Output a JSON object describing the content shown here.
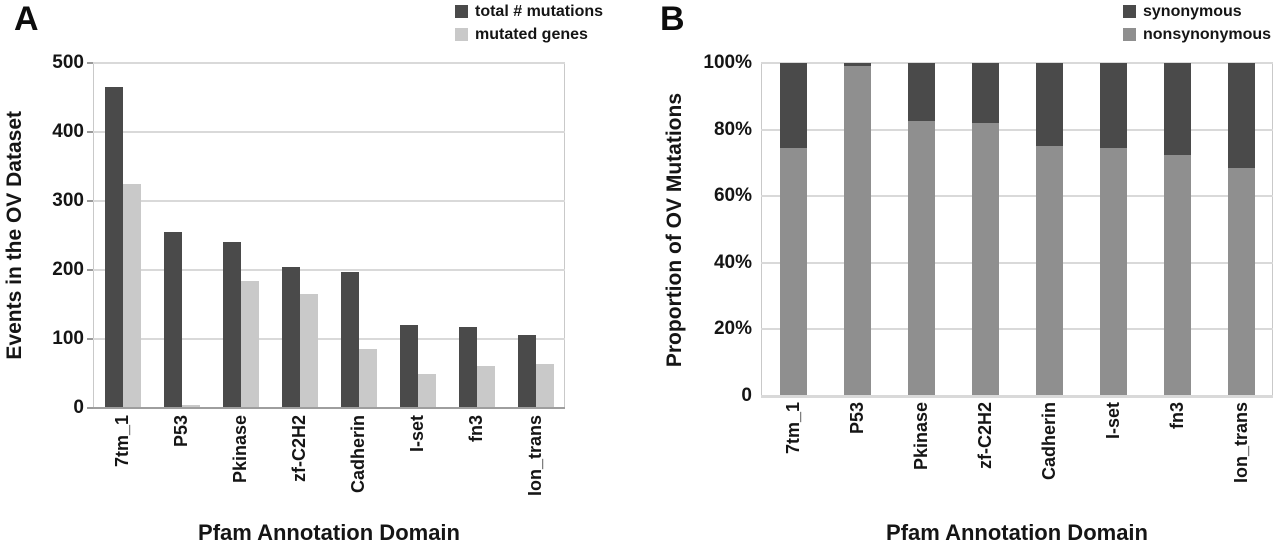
{
  "figure": {
    "panels": [
      {
        "letter": "A"
      },
      {
        "letter": "B"
      }
    ]
  },
  "chart_data": [
    {
      "panel": "A",
      "type": "bar",
      "xlabel": "Pfam Annotation Domain",
      "ylabel": "Events in the OV Dataset",
      "categories": [
        "7tm_1",
        "P53",
        "Pkinase",
        "zf-C2H2",
        "Cadherin",
        "I-set",
        "fn3",
        "Ion_trans"
      ],
      "series": [
        {
          "name": "total # mutations",
          "color": "#4a4a4a",
          "values": [
            465,
            255,
            240,
            205,
            197,
            120,
            117,
            106
          ]
        },
        {
          "name": "mutated genes",
          "color": "#c9c9c9",
          "values": [
            325,
            5,
            184,
            165,
            85,
            50,
            61,
            64
          ]
        }
      ],
      "ylim": [
        0,
        500
      ],
      "yticks": [
        "0",
        "100",
        "200",
        "300",
        "400",
        "500"
      ],
      "grid": true,
      "legend_position": "top-right"
    },
    {
      "panel": "B",
      "type": "stacked-bar",
      "units": "percent",
      "xlabel": "Pfam Annotation Domain",
      "ylabel": "Proportion of OV Mutations",
      "categories": [
        "7tm_1",
        "P53",
        "Pkinase",
        "zf-C2H2",
        "Cadherin",
        "I-set",
        "fn3",
        "Ion_trans"
      ],
      "series": [
        {
          "name": "synonymous",
          "color": "#4a4a4a",
          "values": [
            25.5,
            1,
            17.5,
            18,
            25,
            25.5,
            27.5,
            31.5
          ]
        },
        {
          "name": "nonsynonymous",
          "color": "#8f8f8f",
          "values": [
            74.5,
            99,
            82.5,
            82,
            75,
            74.5,
            72.5,
            68.5
          ]
        }
      ],
      "ylim": [
        0,
        100
      ],
      "yticks": [
        "0",
        "20%",
        "40%",
        "60%",
        "80%",
        "100%"
      ],
      "grid": true,
      "legend_position": "top-right"
    }
  ]
}
